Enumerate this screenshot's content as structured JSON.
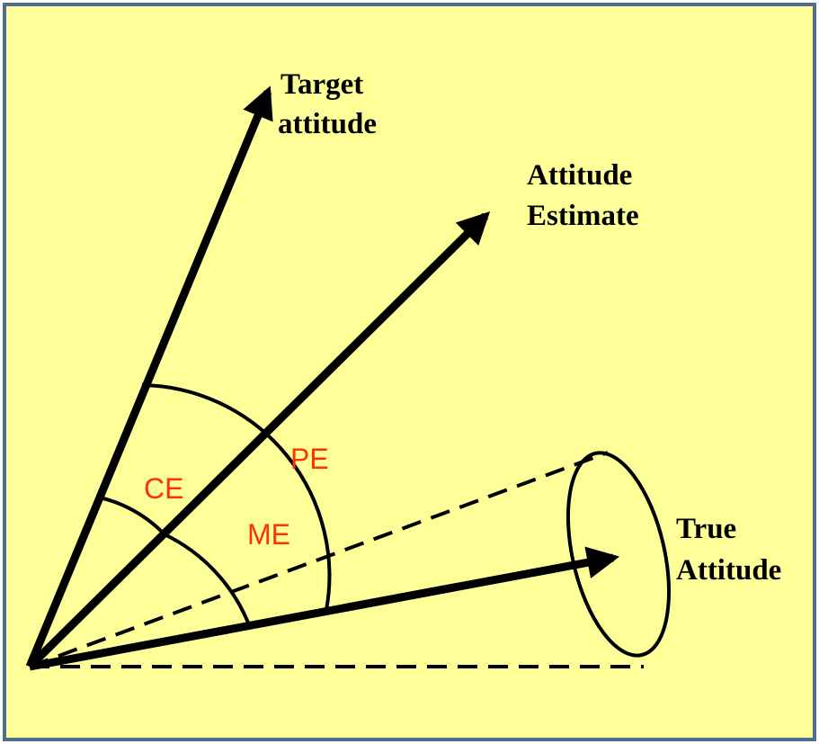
{
  "colors": {
    "background": "#FFFF99",
    "border": "#4F6D8F",
    "ink": "#000000",
    "error_label": "#FF3300"
  },
  "vectors": {
    "target": {
      "line1": "Target",
      "line2": "attitude"
    },
    "estimate": {
      "line1": "Attitude",
      "line2": "Estimate"
    },
    "true_attitude": {
      "line1": "True",
      "line2": "Attitude"
    }
  },
  "errors": {
    "ce": "CE",
    "me": "ME",
    "pe": "PE"
  }
}
